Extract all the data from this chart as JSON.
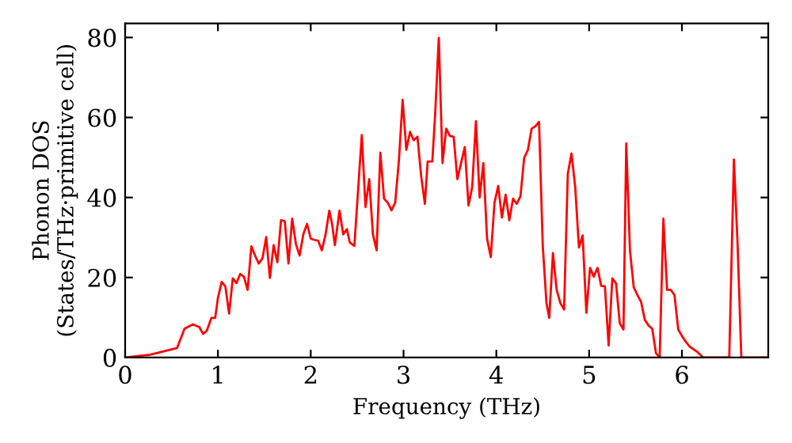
{
  "chart_data": {
    "type": "line",
    "xlabel": "Frequency (THz)",
    "ylabel": "Phonon DOS\n(States/THz·primitive cell)",
    "x": [
      0,
      0.27,
      0.56,
      0.64,
      0.73,
      0.8,
      0.84,
      0.88,
      0.93,
      0.97,
      1.0,
      1.04,
      1.08,
      1.12,
      1.16,
      1.2,
      1.24,
      1.28,
      1.32,
      1.36,
      1.4,
      1.44,
      1.48,
      1.52,
      1.56,
      1.6,
      1.64,
      1.68,
      1.72,
      1.76,
      1.8,
      1.84,
      1.88,
      1.92,
      1.96,
      2.0,
      2.04,
      2.08,
      2.12,
      2.16,
      2.2,
      2.23,
      2.26,
      2.31,
      2.35,
      2.39,
      2.42,
      2.47,
      2.55,
      2.59,
      2.63,
      2.67,
      2.71,
      2.75,
      2.79,
      2.83,
      2.87,
      2.91,
      2.95,
      2.99,
      3.03,
      3.07,
      3.11,
      3.15,
      3.19,
      3.23,
      3.26,
      3.31,
      3.34,
      3.38,
      3.42,
      3.46,
      3.5,
      3.54,
      3.58,
      3.62,
      3.66,
      3.7,
      3.74,
      3.78,
      3.82,
      3.86,
      3.9,
      3.94,
      3.98,
      4.02,
      4.06,
      4.1,
      4.14,
      4.18,
      4.22,
      4.26,
      4.3,
      4.34,
      4.38,
      4.42,
      4.46,
      4.5,
      4.54,
      4.57,
      4.61,
      4.65,
      4.69,
      4.73,
      4.77,
      4.81,
      4.85,
      4.89,
      4.93,
      4.97,
      5.01,
      5.05,
      5.09,
      5.13,
      5.17,
      5.21,
      5.25,
      5.29,
      5.33,
      5.37,
      5.4,
      5.44,
      5.48,
      5.52,
      5.56,
      5.6,
      5.64,
      5.68,
      5.72,
      5.76,
      5.8,
      5.84,
      5.88,
      5.92,
      5.96,
      6.0,
      6.04,
      6.08,
      6.16,
      6.23,
      6.51,
      6.56,
      6.6,
      6.64,
      6.93
    ],
    "series": [
      {
        "color": "#ff0000",
        "values": [
          0,
          0.7,
          2.4,
          7.2,
          8.3,
          7.6,
          5.9,
          6.7,
          9.9,
          9.9,
          14.9,
          18.9,
          17.8,
          11,
          19.8,
          18.6,
          20.9,
          20.2,
          16.9,
          27.8,
          25.5,
          23.5,
          24.8,
          30.1,
          19.9,
          28.1,
          23.8,
          34.3,
          34.1,
          23.5,
          34.7,
          28.4,
          25.5,
          30.8,
          33.4,
          29.7,
          29.4,
          29.2,
          26.8,
          30.8,
          36.7,
          33.4,
          28.1,
          36.7,
          30.8,
          32.1,
          28.8,
          27.9,
          55.6,
          37.6,
          44.6,
          30.8,
          26.8,
          51.2,
          39.7,
          38.7,
          36.8,
          38.7,
          49.2,
          64.4,
          51.9,
          56.4,
          54.3,
          55.2,
          45.3,
          38.4,
          49,
          49,
          60.5,
          79.9,
          48.6,
          57.2,
          55.4,
          55.2,
          44.6,
          48.6,
          52.6,
          38,
          42.6,
          59.1,
          40,
          48.6,
          29.7,
          25.1,
          38.7,
          42.9,
          35,
          40.7,
          34.3,
          39.7,
          38.4,
          40.3,
          49.9,
          51.9,
          57.2,
          57.8,
          58.9,
          28.1,
          13.6,
          9.9,
          26.1,
          16.9,
          13.6,
          12,
          45.9,
          51,
          42.6,
          27.5,
          30.5,
          11.2,
          22.4,
          20.2,
          22.4,
          17.9,
          17.8,
          3,
          19.8,
          18.5,
          8.6,
          7,
          53.5,
          26.8,
          17.6,
          15.6,
          13.9,
          9.4,
          8,
          7.2,
          1.1,
          0,
          34.7,
          16.9,
          16.9,
          15.6,
          7,
          5.4,
          4,
          2.8,
          1.5,
          0,
          0,
          49.5,
          28.1,
          0,
          0
        ]
      }
    ],
    "xlim": [
      0,
      6.93
    ],
    "ylim": [
      0,
      83.5
    ],
    "xticks": [
      0,
      1,
      2,
      3,
      4,
      5,
      6
    ],
    "yticks": [
      0,
      20,
      40,
      60,
      80
    ],
    "grid": false
  }
}
